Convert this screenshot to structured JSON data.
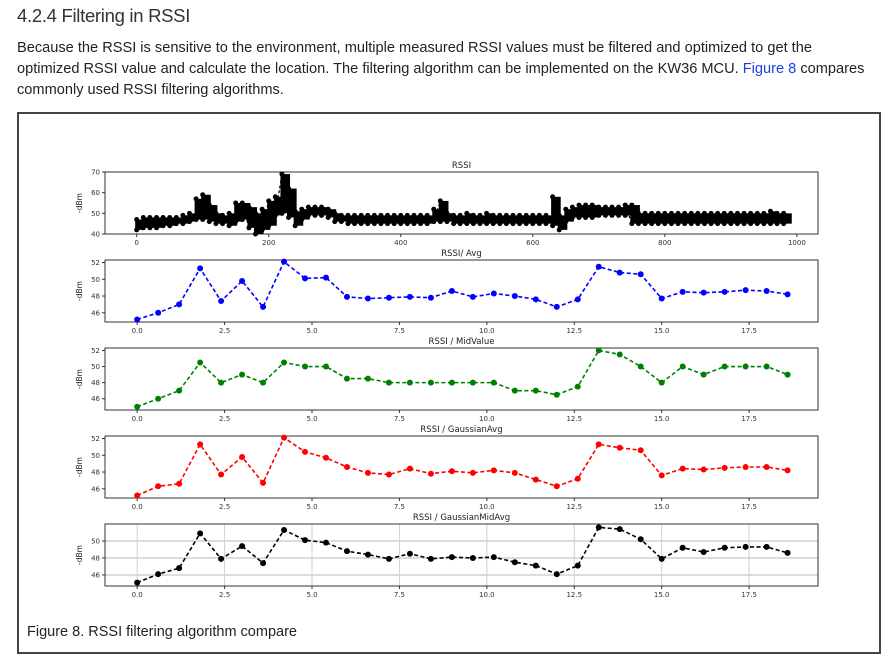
{
  "section": {
    "heading": "4.2.4  Filtering in RSSI",
    "paragraph_part1": "Because the RSSI is sensitive to the environment, multiple measured RSSI values must be filtered and optimized to get the optimized RSSI value and calculate the location. The filtering algorithm can be implemented on the KW36 MCU. ",
    "figure_link": "Figure 8",
    "paragraph_part2": " compares commonly used RSSI filtering algorithms.",
    "caption": "Figure 8.  RSSI filtering algorithm compare",
    "link_color": "#1a3ee8"
  },
  "chart_data": [
    {
      "type": "scatter",
      "title": "RSSI",
      "ylabel": "-dBm",
      "xlim": [
        -48,
        1032
      ],
      "ylim": [
        40,
        70
      ],
      "xticks": [
        0,
        200,
        400,
        600,
        800,
        1000
      ],
      "yticks": [
        40,
        50,
        60,
        70
      ],
      "color": "#000000",
      "grid": false,
      "bins_x_min_max": [
        [
          0,
          42,
          47
        ],
        [
          10,
          43,
          48
        ],
        [
          20,
          43,
          48
        ],
        [
          30,
          43,
          48
        ],
        [
          40,
          44,
          48
        ],
        [
          50,
          44,
          48
        ],
        [
          60,
          45,
          48
        ],
        [
          70,
          45,
          49
        ],
        [
          80,
          46,
          50
        ],
        [
          90,
          47,
          57
        ],
        [
          100,
          47,
          59
        ],
        [
          110,
          46,
          54
        ],
        [
          120,
          45,
          50
        ],
        [
          130,
          45,
          49
        ],
        [
          140,
          44,
          50
        ],
        [
          150,
          46,
          55
        ],
        [
          160,
          47,
          55
        ],
        [
          170,
          43,
          53
        ],
        [
          180,
          40,
          50
        ],
        [
          190,
          42,
          52
        ],
        [
          200,
          44,
          56
        ],
        [
          210,
          49,
          58
        ],
        [
          220,
          50,
          69
        ],
        [
          230,
          48,
          62
        ],
        [
          240,
          44,
          51
        ],
        [
          250,
          47,
          52
        ],
        [
          260,
          49,
          53
        ],
        [
          270,
          49,
          53
        ],
        [
          280,
          49,
          53
        ],
        [
          290,
          48,
          52
        ],
        [
          300,
          46,
          50
        ],
        [
          310,
          46,
          49
        ],
        [
          320,
          45,
          49
        ],
        [
          330,
          45,
          49
        ],
        [
          340,
          45,
          49
        ],
        [
          350,
          45,
          49
        ],
        [
          360,
          45,
          49
        ],
        [
          370,
          45,
          49
        ],
        [
          380,
          45,
          49
        ],
        [
          390,
          45,
          49
        ],
        [
          400,
          45,
          49
        ],
        [
          410,
          45,
          49
        ],
        [
          420,
          45,
          49
        ],
        [
          430,
          45,
          49
        ],
        [
          440,
          45,
          49
        ],
        [
          450,
          46,
          52
        ],
        [
          460,
          46,
          56
        ],
        [
          470,
          46,
          50
        ],
        [
          480,
          45,
          49
        ],
        [
          490,
          45,
          49
        ],
        [
          500,
          45,
          50
        ],
        [
          510,
          45,
          49
        ],
        [
          520,
          45,
          49
        ],
        [
          530,
          45,
          50
        ],
        [
          540,
          45,
          49
        ],
        [
          550,
          45,
          49
        ],
        [
          560,
          45,
          49
        ],
        [
          570,
          45,
          49
        ],
        [
          580,
          45,
          49
        ],
        [
          590,
          45,
          49
        ],
        [
          600,
          45,
          49
        ],
        [
          610,
          45,
          49
        ],
        [
          620,
          45,
          49
        ],
        [
          630,
          44,
          58
        ],
        [
          640,
          42,
          49
        ],
        [
          650,
          46,
          52
        ],
        [
          660,
          48,
          53
        ],
        [
          670,
          48,
          54
        ],
        [
          680,
          48,
          54
        ],
        [
          690,
          48,
          54
        ],
        [
          700,
          49,
          53
        ],
        [
          710,
          49,
          53
        ],
        [
          720,
          49,
          53
        ],
        [
          730,
          49,
          53
        ],
        [
          740,
          49,
          54
        ],
        [
          750,
          45,
          54
        ],
        [
          760,
          45,
          50
        ],
        [
          770,
          45,
          50
        ],
        [
          780,
          45,
          50
        ],
        [
          790,
          45,
          50
        ],
        [
          800,
          45,
          50
        ],
        [
          810,
          45,
          50
        ],
        [
          820,
          45,
          50
        ],
        [
          830,
          45,
          50
        ],
        [
          840,
          45,
          50
        ],
        [
          850,
          45,
          50
        ],
        [
          860,
          45,
          50
        ],
        [
          870,
          45,
          50
        ],
        [
          880,
          45,
          50
        ],
        [
          890,
          45,
          50
        ],
        [
          900,
          45,
          50
        ],
        [
          910,
          45,
          50
        ],
        [
          920,
          45,
          50
        ],
        [
          930,
          45,
          50
        ],
        [
          940,
          45,
          50
        ],
        [
          950,
          45,
          50
        ],
        [
          960,
          45,
          51
        ],
        [
          970,
          45,
          50
        ],
        [
          980,
          45,
          50
        ]
      ]
    },
    {
      "type": "line",
      "title": "RSSI/ Avg",
      "ylabel": "-dBm",
      "color": "#0000ff",
      "xlim": [
        -0.92,
        19.47
      ],
      "ylim": [
        44.9,
        52.3
      ],
      "xticks": [
        "0.0",
        "2.5",
        "5.0",
        "7.5",
        "10.0",
        "12.5",
        "15.0",
        "17.5"
      ],
      "yticks": [
        46,
        48,
        50,
        52
      ],
      "grid": false,
      "x": [
        0,
        0.6,
        1.2,
        1.8,
        2.4,
        3.0,
        3.6,
        4.2,
        4.8,
        5.4,
        6.0,
        6.6,
        7.2,
        7.8,
        8.4,
        9.0,
        9.6,
        10.2,
        10.8,
        11.4,
        12.0,
        12.6,
        13.2,
        13.8,
        14.4,
        15.0,
        15.6,
        16.2,
        16.8,
        17.4,
        18.0,
        18.6
      ],
      "values": [
        45.2,
        46.0,
        47.0,
        51.3,
        47.4,
        49.8,
        46.7,
        52.1,
        50.1,
        50.2,
        47.9,
        47.7,
        47.8,
        47.9,
        47.8,
        48.6,
        47.9,
        48.3,
        48.0,
        47.6,
        46.7,
        47.6,
        51.5,
        50.8,
        50.6,
        47.7,
        48.5,
        48.4,
        48.5,
        48.7,
        48.6,
        48.2
      ]
    },
    {
      "type": "line",
      "title": "RSSI / MidValue",
      "ylabel": "-dBm",
      "color": "#008000",
      "xlim": [
        -0.92,
        19.47
      ],
      "ylim": [
        44.6,
        52.3
      ],
      "xticks": [
        "0.0",
        "2.5",
        "5.0",
        "7.5",
        "10.0",
        "12.5",
        "15.0",
        "17.5"
      ],
      "yticks": [
        46,
        48,
        50,
        52
      ],
      "grid": false,
      "x": [
        0,
        0.6,
        1.2,
        1.8,
        2.4,
        3.0,
        3.6,
        4.2,
        4.8,
        5.4,
        6.0,
        6.6,
        7.2,
        7.8,
        8.4,
        9.0,
        9.6,
        10.2,
        10.8,
        11.4,
        12.0,
        12.6,
        13.2,
        13.8,
        14.4,
        15.0,
        15.6,
        16.2,
        16.8,
        17.4,
        18.0,
        18.6
      ],
      "values": [
        45,
        46,
        47,
        50.5,
        48,
        49,
        48,
        50.5,
        50,
        50,
        48.5,
        48.5,
        48,
        48,
        48,
        48,
        48,
        48,
        47,
        47,
        46.5,
        47.5,
        52,
        51.5,
        50,
        48,
        50,
        49,
        50,
        50,
        50,
        49
      ]
    },
    {
      "type": "line",
      "title": "RSSI / GaussianAvg",
      "ylabel": "-dBm",
      "color": "#ff0000",
      "xlim": [
        -0.92,
        19.47
      ],
      "ylim": [
        44.9,
        52.3
      ],
      "xticks": [
        "0.0",
        "2.5",
        "5.0",
        "7.5",
        "10.0",
        "12.5",
        "15.0",
        "17.5"
      ],
      "yticks": [
        46,
        48,
        50,
        52
      ],
      "grid": false,
      "x": [
        0,
        0.6,
        1.2,
        1.8,
        2.4,
        3.0,
        3.6,
        4.2,
        4.8,
        5.4,
        6.0,
        6.6,
        7.2,
        7.8,
        8.4,
        9.0,
        9.6,
        10.2,
        10.8,
        11.4,
        12.0,
        12.6,
        13.2,
        13.8,
        14.4,
        15.0,
        15.6,
        16.2,
        16.8,
        17.4,
        18.0,
        18.6
      ],
      "values": [
        45.2,
        46.3,
        46.6,
        51.3,
        47.7,
        49.8,
        46.7,
        52.1,
        50.4,
        49.7,
        48.6,
        47.9,
        47.7,
        48.4,
        47.8,
        48.1,
        47.9,
        48.2,
        47.9,
        47.1,
        46.3,
        47.2,
        51.3,
        50.9,
        50.6,
        47.6,
        48.4,
        48.3,
        48.5,
        48.6,
        48.6,
        48.2
      ]
    },
    {
      "type": "line",
      "title": "RSSI / GaussianMidAvg",
      "ylabel": "-dBm",
      "color": "#000000",
      "xlim": [
        -0.92,
        19.47
      ],
      "ylim": [
        44.7,
        52.0
      ],
      "xticks": [
        "0.0",
        "2.5",
        "5.0",
        "7.5",
        "10.0",
        "12.5",
        "15.0",
        "17.5"
      ],
      "yticks": [
        46,
        48,
        50
      ],
      "grid": true,
      "x": [
        0,
        0.6,
        1.2,
        1.8,
        2.4,
        3.0,
        3.6,
        4.2,
        4.8,
        5.4,
        6.0,
        6.6,
        7.2,
        7.8,
        8.4,
        9.0,
        9.6,
        10.2,
        10.8,
        11.4,
        12.0,
        12.6,
        13.2,
        13.8,
        14.4,
        15.0,
        15.6,
        16.2,
        16.8,
        17.4,
        18.0,
        18.6
      ],
      "values": [
        45.1,
        46.1,
        46.8,
        50.9,
        47.9,
        49.4,
        47.4,
        51.3,
        50.1,
        49.8,
        48.8,
        48.4,
        47.9,
        48.5,
        47.9,
        48.1,
        48.0,
        48.1,
        47.5,
        47.1,
        46.1,
        47.1,
        51.6,
        51.4,
        50.2,
        47.9,
        49.2,
        48.7,
        49.2,
        49.3,
        49.3,
        48.6
      ]
    }
  ]
}
